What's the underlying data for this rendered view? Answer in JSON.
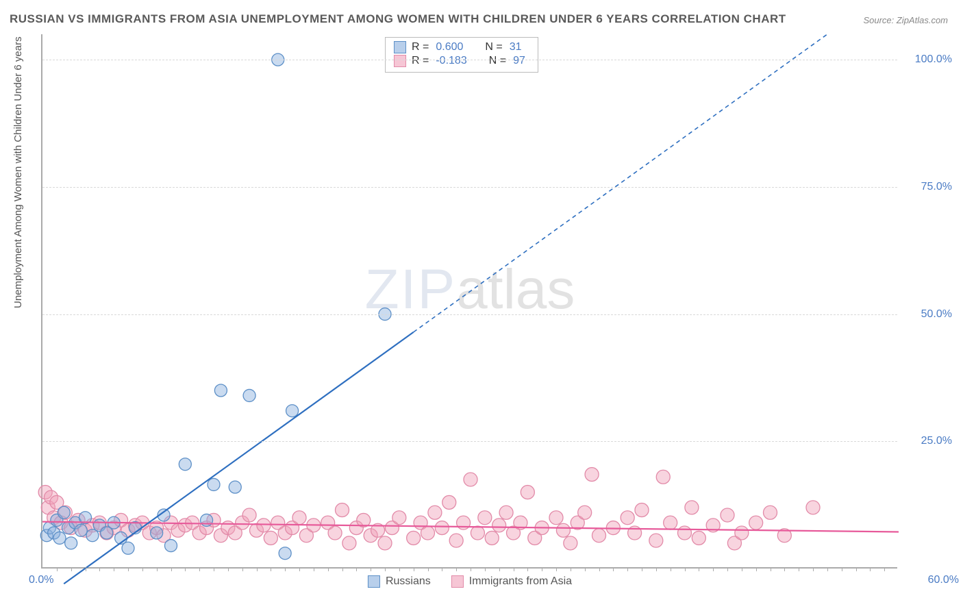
{
  "title": "RUSSIAN VS IMMIGRANTS FROM ASIA UNEMPLOYMENT AMONG WOMEN WITH CHILDREN UNDER 6 YEARS CORRELATION CHART",
  "source": "Source: ZipAtlas.com",
  "ylabel": "Unemployment Among Women with Children Under 6 years",
  "watermark_a": "ZIP",
  "watermark_b": "atlas",
  "chart": {
    "type": "scatter",
    "background_color": "#ffffff",
    "axis_color": "#aaaaaa",
    "grid_color": "#d8d8d8",
    "tick_label_color": "#4a7bc4",
    "xlim": [
      0,
      60
    ],
    "ylim": [
      0,
      105
    ],
    "yticks": [
      25,
      50,
      75,
      100
    ],
    "ytick_labels": [
      "25.0%",
      "50.0%",
      "75.0%",
      "100.0%"
    ],
    "xtick_left": "0.0%",
    "xtick_right": "60.0%",
    "minor_xticks_count": 60,
    "series": [
      {
        "name": "Russians",
        "label": "Russians",
        "R": "0.600",
        "N": "31",
        "marker_fill": "rgba(137,175,222,0.45)",
        "marker_stroke": "#5c8fc7",
        "line_color": "#2e6fc0",
        "line_dash_solid_until_x": 26,
        "regression": {
          "x1": 1.5,
          "y1": -3,
          "x2": 55,
          "y2": 105
        },
        "marker_radius": 9,
        "points": [
          [
            0.3,
            6.5
          ],
          [
            0.5,
            8.0
          ],
          [
            0.8,
            7.0
          ],
          [
            1.0,
            9.5
          ],
          [
            1.2,
            6.0
          ],
          [
            1.5,
            11.0
          ],
          [
            1.8,
            8.0
          ],
          [
            2.0,
            5.0
          ],
          [
            2.3,
            9.0
          ],
          [
            2.7,
            7.5
          ],
          [
            3.0,
            10.0
          ],
          [
            3.5,
            6.5
          ],
          [
            4.0,
            8.5
          ],
          [
            4.5,
            7.0
          ],
          [
            5.0,
            9.0
          ],
          [
            5.5,
            6.0
          ],
          [
            6.0,
            4.0
          ],
          [
            6.5,
            8.0
          ],
          [
            8.0,
            7.0
          ],
          [
            8.5,
            10.5
          ],
          [
            9.0,
            4.5
          ],
          [
            10.0,
            20.5
          ],
          [
            11.5,
            9.5
          ],
          [
            12.0,
            16.5
          ],
          [
            12.5,
            35.0
          ],
          [
            13.5,
            16.0
          ],
          [
            14.5,
            34.0
          ],
          [
            16.5,
            100.0
          ],
          [
            17.0,
            3.0
          ],
          [
            17.5,
            31.0
          ],
          [
            24.0,
            50.0
          ]
        ]
      },
      {
        "name": "Immigrants from Asia",
        "label": "Immigrants from Asia",
        "R": "-0.183",
        "N": "97",
        "marker_fill": "rgba(240,160,185,0.45)",
        "marker_stroke": "#e28aa8",
        "line_color": "#e75a9a",
        "regression": {
          "x1": 0,
          "y1": 9.2,
          "x2": 60,
          "y2": 7.2
        },
        "marker_radius": 10,
        "points": [
          [
            0.2,
            15.0
          ],
          [
            0.4,
            12.0
          ],
          [
            0.6,
            14.0
          ],
          [
            0.8,
            10.0
          ],
          [
            1.0,
            13.0
          ],
          [
            1.3,
            9.0
          ],
          [
            1.6,
            11.0
          ],
          [
            2.0,
            8.0
          ],
          [
            2.5,
            9.5
          ],
          [
            3.0,
            7.5
          ],
          [
            3.5,
            8.5
          ],
          [
            4.0,
            9.0
          ],
          [
            4.5,
            7.0
          ],
          [
            5.0,
            8.0
          ],
          [
            5.5,
            9.5
          ],
          [
            6.0,
            7.5
          ],
          [
            6.5,
            8.5
          ],
          [
            7.0,
            9.0
          ],
          [
            7.5,
            7.0
          ],
          [
            8.0,
            8.0
          ],
          [
            8.5,
            6.5
          ],
          [
            9.0,
            9.0
          ],
          [
            9.5,
            7.5
          ],
          [
            10.0,
            8.5
          ],
          [
            10.5,
            9.0
          ],
          [
            11.0,
            7.0
          ],
          [
            11.5,
            8.0
          ],
          [
            12.0,
            9.5
          ],
          [
            12.5,
            6.5
          ],
          [
            13.0,
            8.0
          ],
          [
            13.5,
            7.0
          ],
          [
            14.0,
            9.0
          ],
          [
            14.5,
            10.5
          ],
          [
            15.0,
            7.5
          ],
          [
            15.5,
            8.5
          ],
          [
            16.0,
            6.0
          ],
          [
            16.5,
            9.0
          ],
          [
            17.0,
            7.0
          ],
          [
            17.5,
            8.0
          ],
          [
            18.0,
            10.0
          ],
          [
            18.5,
            6.5
          ],
          [
            19.0,
            8.5
          ],
          [
            20.0,
            9.0
          ],
          [
            20.5,
            7.0
          ],
          [
            21.0,
            11.5
          ],
          [
            21.5,
            5.0
          ],
          [
            22.0,
            8.0
          ],
          [
            22.5,
            9.5
          ],
          [
            23.0,
            6.5
          ],
          [
            23.5,
            7.5
          ],
          [
            24.0,
            5.0
          ],
          [
            24.5,
            8.0
          ],
          [
            25.0,
            10.0
          ],
          [
            26.0,
            6.0
          ],
          [
            26.5,
            9.0
          ],
          [
            27.0,
            7.0
          ],
          [
            27.5,
            11.0
          ],
          [
            28.0,
            8.0
          ],
          [
            28.5,
            13.0
          ],
          [
            29.0,
            5.5
          ],
          [
            29.5,
            9.0
          ],
          [
            30.0,
            17.5
          ],
          [
            30.5,
            7.0
          ],
          [
            31.0,
            10.0
          ],
          [
            31.5,
            6.0
          ],
          [
            32.0,
            8.5
          ],
          [
            32.5,
            11.0
          ],
          [
            33.0,
            7.0
          ],
          [
            33.5,
            9.0
          ],
          [
            34.0,
            15.0
          ],
          [
            34.5,
            6.0
          ],
          [
            35.0,
            8.0
          ],
          [
            36.0,
            10.0
          ],
          [
            36.5,
            7.5
          ],
          [
            37.0,
            5.0
          ],
          [
            37.5,
            9.0
          ],
          [
            38.0,
            11.0
          ],
          [
            38.5,
            18.5
          ],
          [
            39.0,
            6.5
          ],
          [
            40.0,
            8.0
          ],
          [
            41.0,
            10.0
          ],
          [
            41.5,
            7.0
          ],
          [
            42.0,
            11.5
          ],
          [
            43.0,
            5.5
          ],
          [
            43.5,
            18.0
          ],
          [
            44.0,
            9.0
          ],
          [
            45.0,
            7.0
          ],
          [
            45.5,
            12.0
          ],
          [
            46.0,
            6.0
          ],
          [
            47.0,
            8.5
          ],
          [
            48.0,
            10.5
          ],
          [
            48.5,
            5.0
          ],
          [
            49.0,
            7.0
          ],
          [
            50.0,
            9.0
          ],
          [
            51.0,
            11.0
          ],
          [
            52.0,
            6.5
          ],
          [
            54.0,
            12.0
          ]
        ]
      }
    ]
  },
  "legend": {
    "swatch_blue_fill": "rgba(137,175,222,0.6)",
    "swatch_blue_stroke": "#5c8fc7",
    "swatch_pink_fill": "rgba(240,160,185,0.6)",
    "swatch_pink_stroke": "#e28aa8",
    "r_label": "R =",
    "n_label": "N ="
  }
}
